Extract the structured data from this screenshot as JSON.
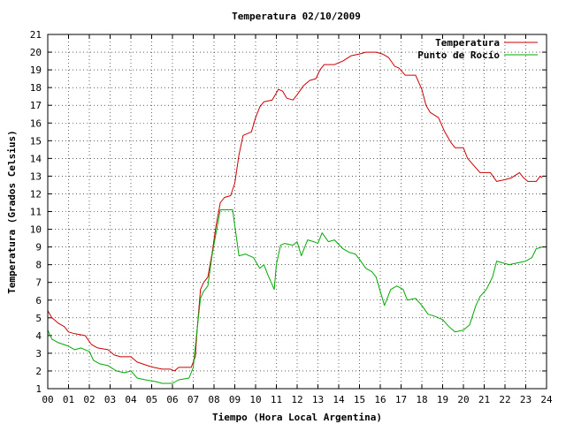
{
  "chart_data": {
    "type": "line",
    "title": "Temperatura 02/10/2009",
    "xlabel": "Tiempo (Hora Local Argentina)",
    "ylabel": "Temperatura (Grados Celsius)",
    "xlim": [
      0,
      24
    ],
    "ylim": [
      1,
      21
    ],
    "grid": true,
    "legend_position": "top-right",
    "x_ticks": [
      "00",
      "01",
      "02",
      "03",
      "04",
      "05",
      "06",
      "07",
      "08",
      "09",
      "10",
      "11",
      "12",
      "13",
      "14",
      "15",
      "16",
      "17",
      "18",
      "19",
      "20",
      "21",
      "22",
      "23",
      "24"
    ],
    "y_ticks": [
      "1",
      "2",
      "3",
      "4",
      "5",
      "6",
      "7",
      "8",
      "9",
      "10",
      "11",
      "12",
      "13",
      "14",
      "15",
      "16",
      "17",
      "18",
      "19",
      "20",
      "21"
    ],
    "series": [
      {
        "name": "Temperatura",
        "color": "#cc0000",
        "points": [
          [
            0.0,
            5.4
          ],
          [
            0.2,
            5.0
          ],
          [
            0.5,
            4.7
          ],
          [
            0.8,
            4.5
          ],
          [
            1.0,
            4.2
          ],
          [
            1.3,
            4.1
          ],
          [
            1.8,
            4.0
          ],
          [
            2.1,
            3.5
          ],
          [
            2.4,
            3.3
          ],
          [
            2.9,
            3.2
          ],
          [
            3.2,
            2.9
          ],
          [
            3.5,
            2.8
          ],
          [
            4.0,
            2.8
          ],
          [
            4.3,
            2.5
          ],
          [
            4.8,
            2.3
          ],
          [
            5.1,
            2.2
          ],
          [
            5.5,
            2.1
          ],
          [
            5.9,
            2.1
          ],
          [
            6.1,
            2.0
          ],
          [
            6.3,
            2.2
          ],
          [
            6.9,
            2.2
          ],
          [
            7.1,
            2.8
          ],
          [
            7.2,
            4.5
          ],
          [
            7.35,
            6.6
          ],
          [
            7.5,
            7.0
          ],
          [
            7.7,
            7.3
          ],
          [
            7.9,
            8.6
          ],
          [
            8.1,
            10.2
          ],
          [
            8.3,
            11.5
          ],
          [
            8.5,
            11.8
          ],
          [
            8.8,
            11.9
          ],
          [
            9.0,
            12.6
          ],
          [
            9.2,
            14.2
          ],
          [
            9.4,
            15.3
          ],
          [
            9.8,
            15.5
          ],
          [
            10.0,
            16.3
          ],
          [
            10.2,
            16.9
          ],
          [
            10.4,
            17.2
          ],
          [
            10.8,
            17.3
          ],
          [
            11.1,
            17.9
          ],
          [
            11.3,
            17.8
          ],
          [
            11.5,
            17.4
          ],
          [
            11.8,
            17.3
          ],
          [
            12.0,
            17.6
          ],
          [
            12.3,
            18.1
          ],
          [
            12.6,
            18.4
          ],
          [
            12.9,
            18.5
          ],
          [
            13.1,
            19.0
          ],
          [
            13.3,
            19.3
          ],
          [
            13.8,
            19.3
          ],
          [
            14.2,
            19.5
          ],
          [
            14.6,
            19.8
          ],
          [
            15.0,
            19.9
          ],
          [
            15.3,
            20.0
          ],
          [
            15.8,
            20.0
          ],
          [
            16.1,
            19.9
          ],
          [
            16.4,
            19.7
          ],
          [
            16.7,
            19.2
          ],
          [
            16.9,
            19.1
          ],
          [
            17.2,
            18.7
          ],
          [
            17.7,
            18.7
          ],
          [
            18.0,
            17.9
          ],
          [
            18.2,
            17.0
          ],
          [
            18.4,
            16.6
          ],
          [
            18.8,
            16.3
          ],
          [
            19.1,
            15.5
          ],
          [
            19.4,
            14.9
          ],
          [
            19.6,
            14.6
          ],
          [
            20.0,
            14.6
          ],
          [
            20.2,
            14.0
          ],
          [
            20.5,
            13.6
          ],
          [
            20.8,
            13.2
          ],
          [
            21.3,
            13.2
          ],
          [
            21.6,
            12.7
          ],
          [
            22.0,
            12.8
          ],
          [
            22.3,
            12.9
          ],
          [
            22.7,
            13.2
          ],
          [
            22.9,
            12.9
          ],
          [
            23.1,
            12.7
          ],
          [
            23.5,
            12.7
          ],
          [
            23.7,
            13.0
          ],
          [
            23.8,
            12.9
          ]
        ]
      },
      {
        "name": "Punto de Rocío",
        "color": "#00aa00",
        "points": [
          [
            0.0,
            4.3
          ],
          [
            0.2,
            3.8
          ],
          [
            0.5,
            3.6
          ],
          [
            1.0,
            3.4
          ],
          [
            1.3,
            3.2
          ],
          [
            1.6,
            3.3
          ],
          [
            2.0,
            3.1
          ],
          [
            2.2,
            2.6
          ],
          [
            2.5,
            2.4
          ],
          [
            2.9,
            2.3
          ],
          [
            3.3,
            2.0
          ],
          [
            3.7,
            1.9
          ],
          [
            4.0,
            2.0
          ],
          [
            4.3,
            1.6
          ],
          [
            4.7,
            1.5
          ],
          [
            5.2,
            1.4
          ],
          [
            5.5,
            1.3
          ],
          [
            6.0,
            1.3
          ],
          [
            6.3,
            1.5
          ],
          [
            6.8,
            1.6
          ],
          [
            7.0,
            2.2
          ],
          [
            7.2,
            4.5
          ],
          [
            7.35,
            6.1
          ],
          [
            7.5,
            6.5
          ],
          [
            7.7,
            6.8
          ],
          [
            7.9,
            8.5
          ],
          [
            8.1,
            9.8
          ],
          [
            8.3,
            11.1
          ],
          [
            8.5,
            11.1
          ],
          [
            8.9,
            11.1
          ],
          [
            9.0,
            10.2
          ],
          [
            9.2,
            8.5
          ],
          [
            9.5,
            8.6
          ],
          [
            9.9,
            8.4
          ],
          [
            10.2,
            7.8
          ],
          [
            10.4,
            8.0
          ],
          [
            10.6,
            7.4
          ],
          [
            10.9,
            6.6
          ],
          [
            11.0,
            8.0
          ],
          [
            11.2,
            9.1
          ],
          [
            11.4,
            9.2
          ],
          [
            11.8,
            9.1
          ],
          [
            12.0,
            9.3
          ],
          [
            12.2,
            8.5
          ],
          [
            12.5,
            9.4
          ],
          [
            12.8,
            9.3
          ],
          [
            13.0,
            9.2
          ],
          [
            13.2,
            9.8
          ],
          [
            13.5,
            9.3
          ],
          [
            13.8,
            9.4
          ],
          [
            14.2,
            8.9
          ],
          [
            14.5,
            8.7
          ],
          [
            14.8,
            8.6
          ],
          [
            15.0,
            8.3
          ],
          [
            15.3,
            7.8
          ],
          [
            15.6,
            7.6
          ],
          [
            15.8,
            7.3
          ],
          [
            16.0,
            6.5
          ],
          [
            16.2,
            5.7
          ],
          [
            16.5,
            6.6
          ],
          [
            16.8,
            6.8
          ],
          [
            17.1,
            6.6
          ],
          [
            17.3,
            6.0
          ],
          [
            17.7,
            6.1
          ],
          [
            18.0,
            5.7
          ],
          [
            18.3,
            5.2
          ],
          [
            18.6,
            5.1
          ],
          [
            19.0,
            4.9
          ],
          [
            19.3,
            4.5
          ],
          [
            19.6,
            4.2
          ],
          [
            20.0,
            4.3
          ],
          [
            20.3,
            4.6
          ],
          [
            20.6,
            5.7
          ],
          [
            20.8,
            6.2
          ],
          [
            21.1,
            6.6
          ],
          [
            21.4,
            7.3
          ],
          [
            21.6,
            8.2
          ],
          [
            21.9,
            8.1
          ],
          [
            22.2,
            8.0
          ],
          [
            22.6,
            8.1
          ],
          [
            23.0,
            8.2
          ],
          [
            23.3,
            8.4
          ],
          [
            23.5,
            8.9
          ],
          [
            23.8,
            9.0
          ]
        ]
      }
    ]
  }
}
